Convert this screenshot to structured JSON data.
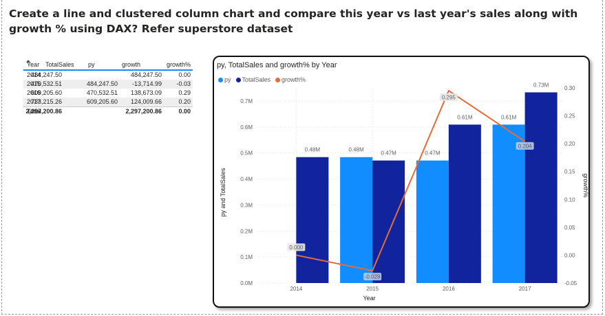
{
  "question": "Create a line and clustered column chart and compare this year vs last year's sales along with growth % using DAX? Refer superstore dataset",
  "table": {
    "headers": [
      "Year",
      "TotalSales",
      "py",
      "growth",
      "growth%"
    ],
    "rows": [
      {
        "year": "2014",
        "total": "484,247.50",
        "py": "",
        "growth": "484,247.50",
        "pct": "0.00"
      },
      {
        "year": "2015",
        "total": "470,532.51",
        "py": "484,247.50",
        "growth": "-13,714.99",
        "pct": "-0.03"
      },
      {
        "year": "2016",
        "total": "609,205.60",
        "py": "470,532.51",
        "growth": "138,673.09",
        "pct": "0.29"
      },
      {
        "year": "2017",
        "total": "733,215.26",
        "py": "609,205.60",
        "growth": "124,009.66",
        "pct": "0.20"
      }
    ],
    "total_row": {
      "label": "Total",
      "total": "2,297,200.86",
      "py": "",
      "growth": "2,297,200.86",
      "pct": "0.00"
    }
  },
  "chart_data": {
    "type": "bar",
    "title": "py, TotalSales and growth% by Year",
    "legend": [
      "py",
      "TotalSales",
      "growth%"
    ],
    "legend_placement": "top-left",
    "categories": [
      "2014",
      "2015",
      "2016",
      "2017"
    ],
    "xlabel": "Year",
    "ylabel": "py and TotalSales",
    "y2label": "growth%",
    "ylim": [
      0,
      0.75
    ],
    "y2lim": [
      -0.05,
      0.3
    ],
    "y_ticks": [
      "0.0M",
      "0.1M",
      "0.2M",
      "0.3M",
      "0.4M",
      "0.5M",
      "0.6M",
      "0.7M"
    ],
    "y2_ticks": [
      "-0.05",
      "0.00",
      "0.05",
      "0.10",
      "0.15",
      "0.20",
      "0.25",
      "0.30"
    ],
    "series": [
      {
        "name": "py",
        "kind": "column",
        "color": "#118dff",
        "values": [
          null,
          0.484,
          0.471,
          0.609
        ],
        "labels": [
          "",
          "0.48M",
          "0.47M",
          "0.61M"
        ]
      },
      {
        "name": "TotalSales",
        "kind": "column",
        "color": "#12239e",
        "values": [
          0.484,
          0.471,
          0.609,
          0.733
        ],
        "labels": [
          "0.48M",
          "0.47M",
          "0.61M",
          "0.73M"
        ]
      },
      {
        "name": "growth%",
        "kind": "line",
        "color": "#e66c37",
        "values": [
          0.0,
          -0.028,
          0.295,
          0.204
        ],
        "labels": [
          "0.000",
          "-0.028",
          "0.295",
          "0.204"
        ]
      }
    ],
    "grid": true
  }
}
